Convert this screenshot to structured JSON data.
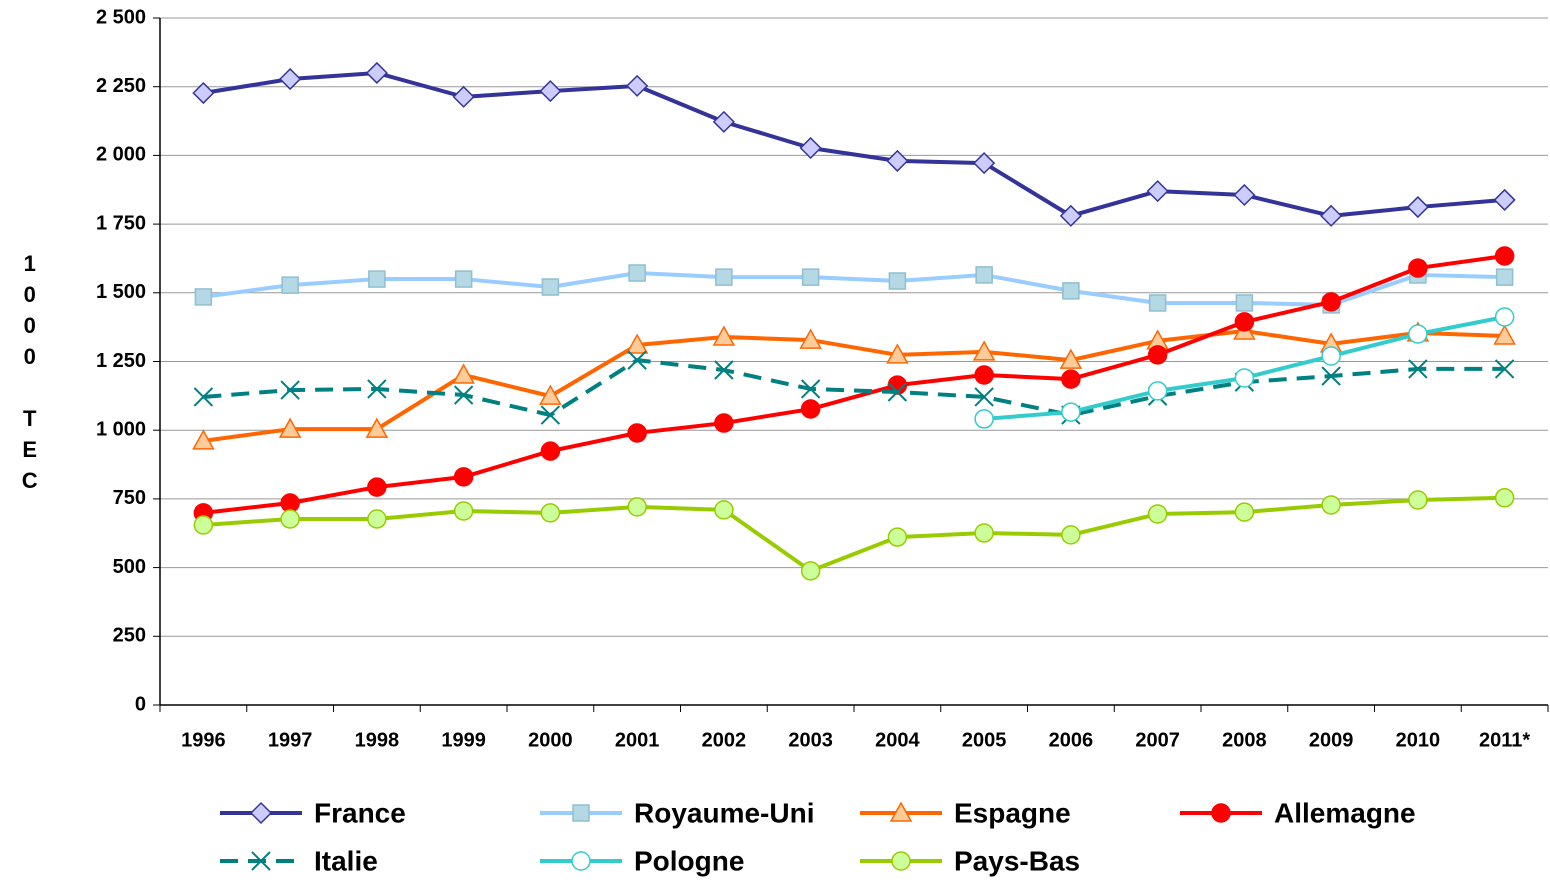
{
  "chart_data": {
    "type": "line",
    "y_label": "1000 TEC",
    "categories": [
      "1996",
      "1997",
      "1998",
      "1999",
      "2000",
      "2001",
      "2002",
      "2003",
      "2004",
      "2005",
      "2006",
      "2007",
      "2008",
      "2009",
      "2010",
      "2011*"
    ],
    "ylim": [
      0,
      2500
    ],
    "yticks": [
      0,
      250,
      500,
      750,
      {
        "value": 1000,
        "label": "1 000"
      },
      {
        "value": 1250,
        "label": "1 250"
      },
      {
        "value": 1500,
        "label": "1 500"
      },
      {
        "value": 1750,
        "label": "1 750"
      },
      {
        "value": 2000,
        "label": "2 000"
      },
      {
        "value": 2250,
        "label": "2 250"
      },
      {
        "value": 2500,
        "label": "2 500"
      }
    ],
    "grid": true,
    "series": [
      {
        "name": "France",
        "color": "#333399",
        "marker": "diamond",
        "marker_color": "#ccccff",
        "values": [
          2227,
          2278,
          2300,
          2213,
          2234,
          2253,
          2122,
          2027,
          1980,
          1972,
          1780,
          1870,
          1856,
          1780,
          1812,
          1838
        ]
      },
      {
        "name": "Royaume-Uni",
        "color": "#99ccff",
        "marker": "square",
        "marker_color": "#b4d8e4",
        "values": [
          1485,
          1528,
          1550,
          1550,
          1521,
          1572,
          1557,
          1557,
          1543,
          1565,
          1507,
          1463,
          1463,
          1456,
          1565,
          1557
        ]
      },
      {
        "name": "Espagne",
        "color": "#ff6600",
        "marker": "triangle",
        "marker_color": "#ffcc99",
        "values": [
          961,
          1004,
          1004,
          1201,
          1124,
          1310,
          1339,
          1328,
          1274,
          1285,
          1255,
          1325,
          1361,
          1314,
          1354,
          1343
        ]
      },
      {
        "name": "Allemagne",
        "color": "#ff0000",
        "marker": "circle",
        "marker_color": "#ff0000",
        "values": [
          699,
          735,
          793,
          830,
          924,
          990,
          1026,
          1077,
          1164,
          1201,
          1186,
          1274,
          1394,
          1467,
          1590,
          1634
        ]
      },
      {
        "name": "Italie",
        "color": "#008080",
        "marker": "x",
        "marker_color": "#008080",
        "dashed": true,
        "values": [
          1121,
          1146,
          1150,
          1128,
          1055,
          1255,
          1219,
          1150,
          1139,
          1121,
          1055,
          1124,
          1175,
          1197,
          1223,
          1223
        ]
      },
      {
        "name": "Pologne",
        "color": "#33cccc",
        "marker": "circle",
        "marker_color": "#ffffff",
        "values": [
          null,
          null,
          null,
          null,
          null,
          null,
          null,
          null,
          null,
          1041,
          1066,
          1143,
          1190,
          1270,
          1350,
          1412
        ]
      },
      {
        "name": "Pays-Bas",
        "color": "#99cc00",
        "marker": "circle",
        "marker_color": "#ccff99",
        "values": [
          655,
          677,
          677,
          706,
          699,
          721,
          710,
          488,
          611,
          626,
          619,
          695,
          702,
          728,
          746,
          754
        ]
      }
    ]
  }
}
